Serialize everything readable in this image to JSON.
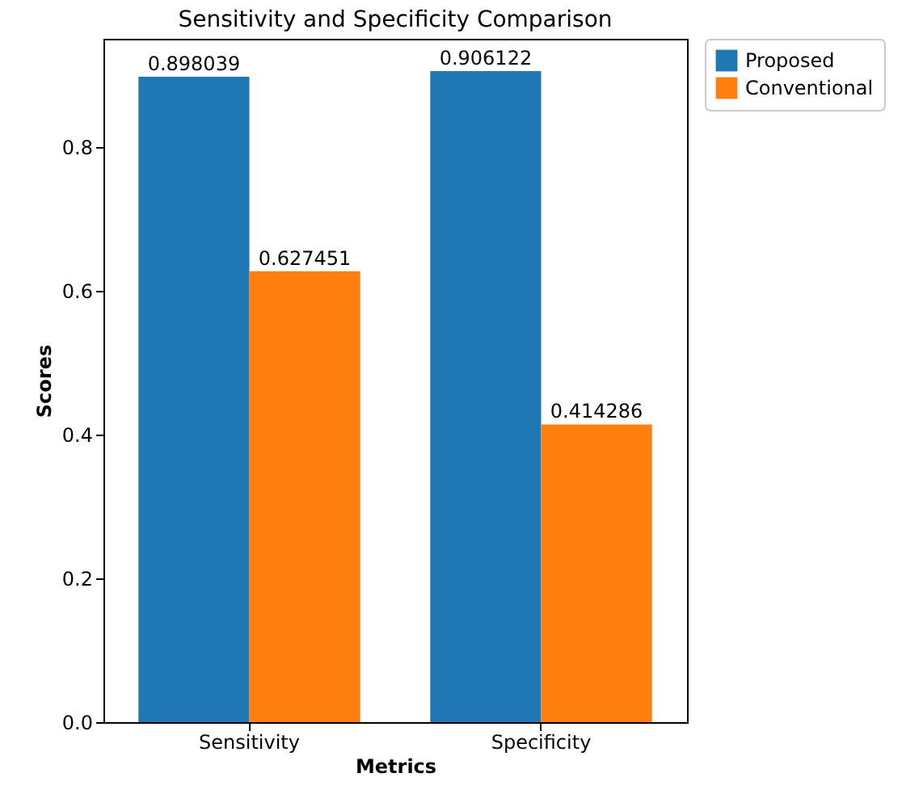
{
  "chart_data": {
    "type": "bar",
    "title": "Sensitivity and Specificity Comparison",
    "xlabel": "Metrics",
    "ylabel": "Scores",
    "categories": [
      "Sensitivity",
      "Specificity"
    ],
    "series": [
      {
        "name": "Proposed",
        "color": "#1f77b4",
        "values": [
          0.898039,
          0.906122
        ]
      },
      {
        "name": "Conventional",
        "color": "#ff7f0e",
        "values": [
          0.627451,
          0.414286
        ]
      }
    ],
    "ylim": [
      0,
      0.951
    ],
    "yticks": [
      {
        "value": 0,
        "label": "0.0"
      },
      {
        "value": 0.2,
        "label": "0.2"
      },
      {
        "value": 0.4,
        "label": "0.4"
      },
      {
        "value": 0.6,
        "label": "0.6"
      },
      {
        "value": 0.8,
        "label": "0.8"
      }
    ],
    "data_labels": true,
    "legend": "top right",
    "grid": false
  }
}
